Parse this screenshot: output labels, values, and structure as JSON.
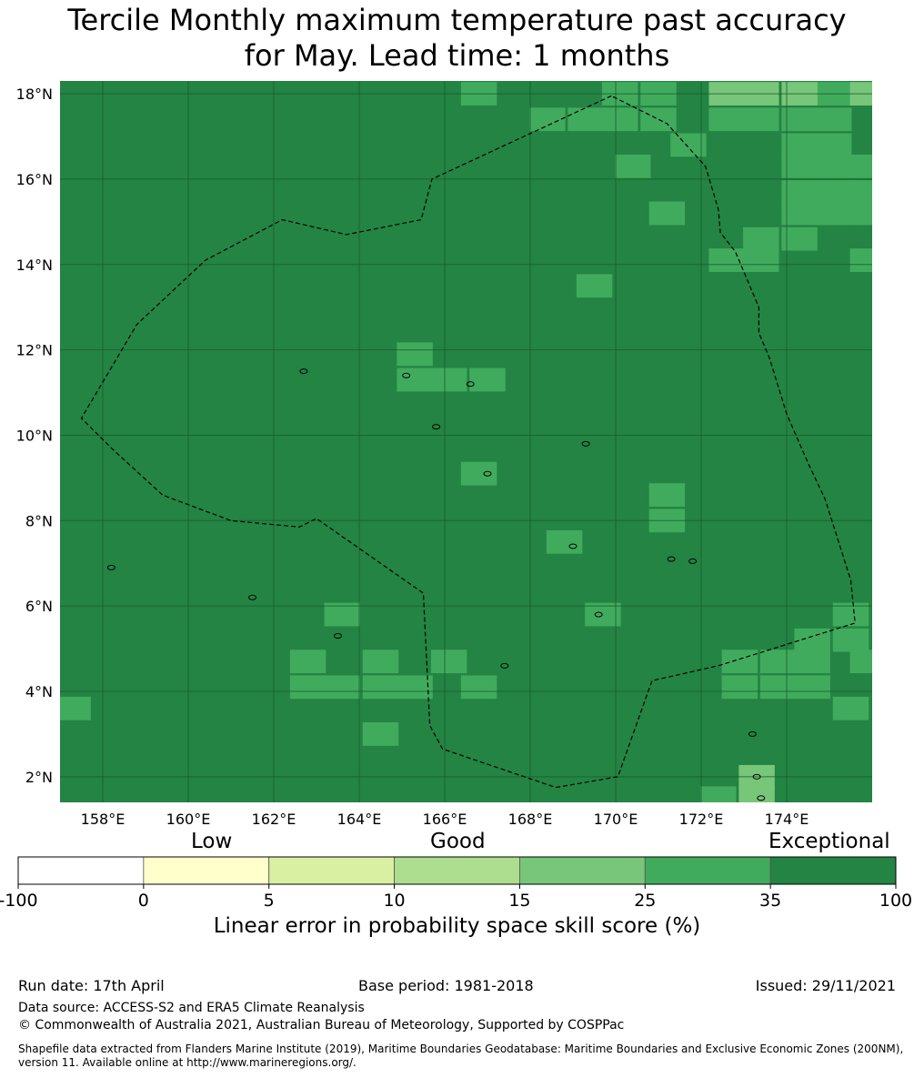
{
  "title_line1": "Tercile Monthly maximum temperature past accuracy",
  "title_line2": "for May. Lead time: 1 months",
  "map": {
    "lon_range": [
      157,
      176
    ],
    "lat_range": [
      1.4,
      18.3
    ],
    "lon_ticks": [
      "158°E",
      "160°E",
      "162°E",
      "164°E",
      "166°E",
      "168°E",
      "170°E",
      "172°E",
      "174°E"
    ],
    "lat_ticks": [
      "2°N",
      "4°N",
      "6°N",
      "8°N",
      "10°N",
      "12°N",
      "14°N",
      "16°N",
      "18°N"
    ],
    "base_color": "#238443",
    "cells": [
      {
        "lon": 166.8,
        "lat": 18.0,
        "category": "25-35"
      },
      {
        "lon": 168.4,
        "lat": 17.4,
        "category": "25-35"
      },
      {
        "lon": 169.3,
        "lat": 17.4,
        "category": "25-35"
      },
      {
        "lon": 170.1,
        "lat": 17.4,
        "category": "25-35"
      },
      {
        "lon": 170.1,
        "lat": 18.0,
        "category": "25-35"
      },
      {
        "lon": 171.0,
        "lat": 18.0,
        "category": "25-35"
      },
      {
        "lon": 171.0,
        "lat": 17.4,
        "category": "25-35"
      },
      {
        "lon": 172.6,
        "lat": 17.4,
        "category": "25-35"
      },
      {
        "lon": 173.4,
        "lat": 17.4,
        "category": "25-35"
      },
      {
        "lon": 174.3,
        "lat": 17.4,
        "category": "25-35"
      },
      {
        "lon": 175.1,
        "lat": 17.4,
        "category": "25-35"
      },
      {
        "lon": 175.1,
        "lat": 18.0,
        "category": "25-35"
      },
      {
        "lon": 172.6,
        "lat": 18.0,
        "category": "15-25"
      },
      {
        "lon": 173.4,
        "lat": 18.0,
        "category": "15-25"
      },
      {
        "lon": 174.3,
        "lat": 18.0,
        "category": "15-25"
      },
      {
        "lon": 175.9,
        "lat": 18.0,
        "category": "15-25"
      },
      {
        "lon": 171.7,
        "lat": 16.8,
        "category": "25-35"
      },
      {
        "lon": 174.3,
        "lat": 16.8,
        "category": "25-35"
      },
      {
        "lon": 175.1,
        "lat": 16.8,
        "category": "25-35"
      },
      {
        "lon": 170.4,
        "lat": 16.3,
        "category": "25-35"
      },
      {
        "lon": 174.3,
        "lat": 16.3,
        "category": "25-35"
      },
      {
        "lon": 175.1,
        "lat": 16.3,
        "category": "25-35"
      },
      {
        "lon": 175.9,
        "lat": 16.3,
        "category": "25-35"
      },
      {
        "lon": 174.3,
        "lat": 15.7,
        "category": "25-35"
      },
      {
        "lon": 175.1,
        "lat": 15.7,
        "category": "25-35"
      },
      {
        "lon": 175.9,
        "lat": 15.7,
        "category": "25-35"
      },
      {
        "lon": 171.2,
        "lat": 15.2,
        "category": "25-35"
      },
      {
        "lon": 174.3,
        "lat": 15.2,
        "category": "25-35"
      },
      {
        "lon": 175.1,
        "lat": 15.2,
        "category": "25-35"
      },
      {
        "lon": 175.9,
        "lat": 15.2,
        "category": "25-35"
      },
      {
        "lon": 173.4,
        "lat": 14.6,
        "category": "25-35"
      },
      {
        "lon": 174.3,
        "lat": 14.6,
        "category": "25-35"
      },
      {
        "lon": 172.6,
        "lat": 14.1,
        "category": "25-35"
      },
      {
        "lon": 173.4,
        "lat": 14.1,
        "category": "25-35"
      },
      {
        "lon": 175.9,
        "lat": 14.1,
        "category": "25-35"
      },
      {
        "lon": 169.5,
        "lat": 13.5,
        "category": "25-35"
      },
      {
        "lon": 165.3,
        "lat": 11.9,
        "category": "25-35"
      },
      {
        "lon": 165.3,
        "lat": 11.3,
        "category": "25-35"
      },
      {
        "lon": 166.1,
        "lat": 11.3,
        "category": "25-35"
      },
      {
        "lon": 167.0,
        "lat": 11.3,
        "category": "25-35"
      },
      {
        "lon": 166.8,
        "lat": 9.1,
        "category": "25-35"
      },
      {
        "lon": 171.2,
        "lat": 8.6,
        "category": "25-35"
      },
      {
        "lon": 171.2,
        "lat": 8.0,
        "category": "25-35"
      },
      {
        "lon": 168.8,
        "lat": 7.5,
        "category": "25-35"
      },
      {
        "lon": 163.6,
        "lat": 5.8,
        "category": "25-35"
      },
      {
        "lon": 169.7,
        "lat": 5.8,
        "category": "25-35"
      },
      {
        "lon": 175.5,
        "lat": 5.8,
        "category": "25-35"
      },
      {
        "lon": 174.6,
        "lat": 5.2,
        "category": "25-35"
      },
      {
        "lon": 175.5,
        "lat": 5.2,
        "category": "25-35"
      },
      {
        "lon": 162.8,
        "lat": 4.7,
        "category": "25-35"
      },
      {
        "lon": 164.5,
        "lat": 4.7,
        "category": "25-35"
      },
      {
        "lon": 166.1,
        "lat": 4.7,
        "category": "25-35"
      },
      {
        "lon": 172.9,
        "lat": 4.7,
        "category": "25-35"
      },
      {
        "lon": 173.8,
        "lat": 4.7,
        "category": "25-35"
      },
      {
        "lon": 174.6,
        "lat": 4.7,
        "category": "25-35"
      },
      {
        "lon": 175.9,
        "lat": 4.7,
        "category": "25-35"
      },
      {
        "lon": 162.8,
        "lat": 4.1,
        "category": "25-35"
      },
      {
        "lon": 163.6,
        "lat": 4.1,
        "category": "25-35"
      },
      {
        "lon": 164.5,
        "lat": 4.1,
        "category": "25-35"
      },
      {
        "lon": 165.3,
        "lat": 4.1,
        "category": "25-35"
      },
      {
        "lon": 166.8,
        "lat": 4.1,
        "category": "25-35"
      },
      {
        "lon": 172.9,
        "lat": 4.1,
        "category": "25-35"
      },
      {
        "lon": 173.8,
        "lat": 4.1,
        "category": "25-35"
      },
      {
        "lon": 174.6,
        "lat": 4.1,
        "category": "25-35"
      },
      {
        "lon": 157.3,
        "lat": 3.6,
        "category": "25-35"
      },
      {
        "lon": 175.5,
        "lat": 3.6,
        "category": "25-35"
      },
      {
        "lon": 164.5,
        "lat": 3.0,
        "category": "25-35"
      },
      {
        "lon": 173.3,
        "lat": 2.0,
        "category": "15-25"
      },
      {
        "lon": 173.3,
        "lat": 1.5,
        "category": "15-25"
      },
      {
        "lon": 172.4,
        "lat": 1.5,
        "category": "25-35"
      }
    ],
    "eez_boundary": [
      [
        169.9,
        17.95
      ],
      [
        165.7,
        16.0
      ],
      [
        165.45,
        15.05
      ],
      [
        163.7,
        14.7
      ],
      [
        162.2,
        15.05
      ],
      [
        160.4,
        14.1
      ],
      [
        158.8,
        12.6
      ],
      [
        157.5,
        10.4
      ],
      [
        158.2,
        9.7
      ],
      [
        159.4,
        8.6
      ],
      [
        161.0,
        8.0
      ],
      [
        162.6,
        7.85
      ],
      [
        163.0,
        8.05
      ],
      [
        165.5,
        6.3
      ],
      [
        165.65,
        3.2
      ],
      [
        165.95,
        2.65
      ],
      [
        168.6,
        1.75
      ],
      [
        170.05,
        2.0
      ],
      [
        170.85,
        4.25
      ],
      [
        172.4,
        4.6
      ],
      [
        175.6,
        5.6
      ],
      [
        175.5,
        6.6
      ],
      [
        174.9,
        8.5
      ],
      [
        174.5,
        9.35
      ],
      [
        174.0,
        10.5
      ],
      [
        173.6,
        11.8
      ],
      [
        173.35,
        12.4
      ],
      [
        173.35,
        13.0
      ],
      [
        172.8,
        14.3
      ],
      [
        172.45,
        14.75
      ],
      [
        172.4,
        15.3
      ],
      [
        172.1,
        16.3
      ],
      [
        171.2,
        17.3
      ],
      [
        169.9,
        17.95
      ]
    ]
  },
  "colorbar": {
    "categories": [
      "Low",
      "Good",
      "Exceptional"
    ],
    "tick_labels": [
      "-100",
      "0",
      "5",
      "10",
      "15",
      "25",
      "35",
      "100"
    ],
    "colors": [
      "#ffffff",
      "#ffffcc",
      "#d9f0a3",
      "#addd8e",
      "#78c679",
      "#41ab5d",
      "#238443"
    ],
    "label": "Linear error in probability space skill score (%)"
  },
  "category_colors": {
    "25-35": "#41ab5d",
    "15-25": "#78c679"
  },
  "footer": {
    "run_date": "Run date: 17th April",
    "base_period": "Base period: 1981-2018",
    "issued": "Issued: 29/11/2021",
    "data_source": "Data source: ACCESS-S2 and ERA5 Climate Reanalysis",
    "copyright": "© Commonwealth of Australia 2021, Australian Bureau of Meteorology, Supported by COSPPac",
    "shapefile": "Shapefile data extracted from Flanders Marine Institute (2019), Maritime Boundaries Geodatabase: Maritime Boundaries and Exclusive Economic Zones (200NM), version 11. Available online at http://www.marineregions.org/."
  }
}
